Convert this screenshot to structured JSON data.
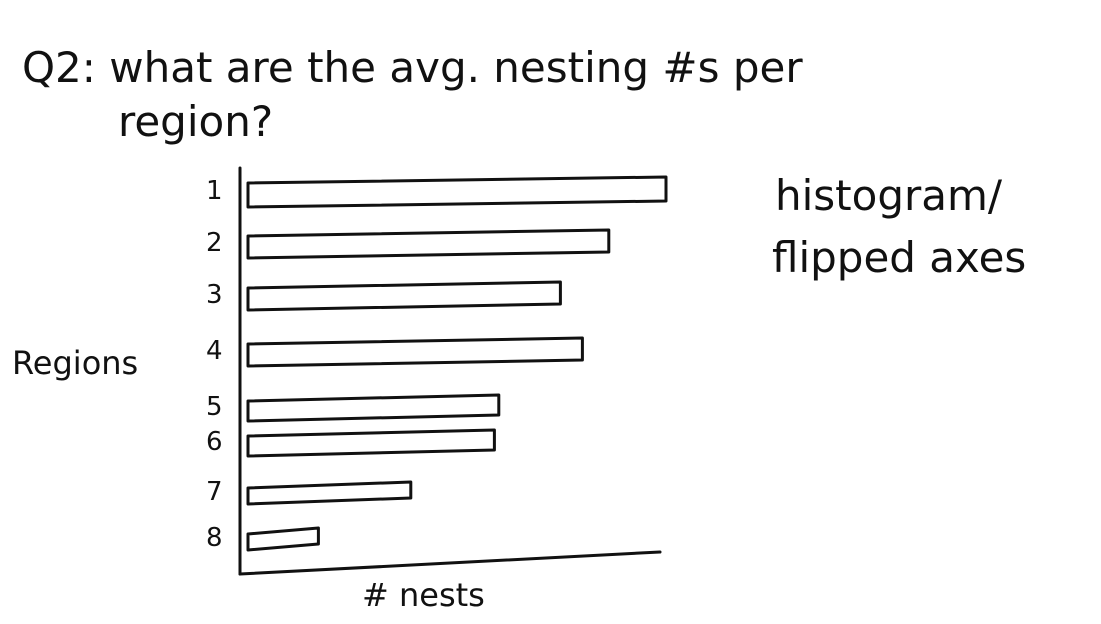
{
  "question": "Q2: what are the avg. nesting #s per region?",
  "note": {
    "line1": "histogram/",
    "line2": "flipped axes"
  },
  "chart_data": {
    "type": "bar",
    "orientation": "horizontal",
    "ylabel": "Regions",
    "xlabel": "# nests",
    "categories": [
      "1",
      "2",
      "3",
      "4",
      "5",
      "6",
      "7",
      "8"
    ],
    "values": [
      0.95,
      0.82,
      0.71,
      0.76,
      0.57,
      0.56,
      0.37,
      0.16
    ],
    "xlim": [
      0,
      1
    ],
    "grid": false,
    "legend": "none"
  }
}
